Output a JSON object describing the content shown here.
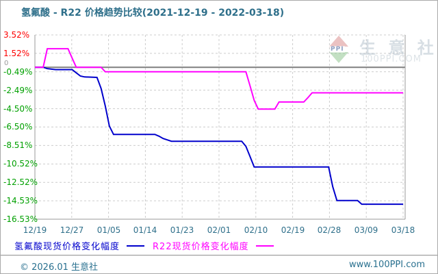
{
  "title": "氢氟酸 - R22 价格趋势比较(2021-12-19 - 2022-03-18)",
  "watermark": {
    "logo_text": "PPI",
    "brand": "生 意 社",
    "site": "100PPI.COM"
  },
  "legend": {
    "items": [
      {
        "label": "氢氟酸现货价格变化幅度",
        "color": "#0000cc"
      },
      {
        "label": "R22现货价格变化幅度",
        "color": "#ff00ff"
      }
    ]
  },
  "footer": {
    "copyright": "© 2026.01 生意社",
    "site": "www.100PPI.com"
  },
  "colors": {
    "title_text": "#2e6f8a",
    "tick_positive": "#fe0000",
    "tick_negative": "#00a000",
    "tick_zero": "#9a9a9a",
    "x_tick_text": "#2e6f8a",
    "grid": "#cccccc",
    "axis": "#999999",
    "zero_line": "#7f7f7f",
    "series_hf": "#0000cc",
    "series_r22": "#ff00ff"
  },
  "chart_data": {
    "type": "line",
    "title": "氢氟酸 - R22 价格趋势比较(2021-12-19 - 2022-03-18)",
    "unit": "%",
    "date_range": [
      "2021-12-19",
      "2022-03-18"
    ],
    "ylim": [
      -16.53,
      3.52
    ],
    "grid": true,
    "legend_position": "bottom",
    "zero_label": "0",
    "x_tick_labels": [
      "12/19",
      "12/27",
      "01/05",
      "01/14",
      "01/23",
      "02/01",
      "02/10",
      "02/19",
      "02/28",
      "03/09",
      "03/18"
    ],
    "y_ticks": [
      {
        "value": 3.52,
        "label": "3.52%"
      },
      {
        "value": 1.52,
        "label": "1.52%"
      },
      {
        "value": -0.49,
        "label": "-0.49%"
      },
      {
        "value": -2.49,
        "label": "-2.49%"
      },
      {
        "value": -4.5,
        "label": "-4.50%"
      },
      {
        "value": -6.5,
        "label": "-6.50%"
      },
      {
        "value": -8.51,
        "label": "-8.51%"
      },
      {
        "value": -10.52,
        "label": "-10.52%"
      },
      {
        "value": -12.52,
        "label": "-12.52%"
      },
      {
        "value": -14.53,
        "label": "-14.53%"
      },
      {
        "value": -16.53,
        "label": "-16.53%"
      }
    ],
    "series": [
      {
        "name": "氢氟酸现货价格变化幅度",
        "color": "#0000cc",
        "points": [
          [
            "12/19",
            0
          ],
          [
            "12/21",
            0
          ],
          [
            "12/22",
            -0.15
          ],
          [
            "12/24",
            -0.25
          ],
          [
            "12/28",
            -0.25
          ],
          [
            "12/29",
            -0.6
          ],
          [
            "12/30",
            -0.95
          ],
          [
            "12/31",
            -1.05
          ],
          [
            "01/03",
            -1.1
          ],
          [
            "01/04",
            -2.3
          ],
          [
            "01/05",
            -4.2
          ],
          [
            "01/06",
            -6.4
          ],
          [
            "01/07",
            -7.3
          ],
          [
            "01/17",
            -7.3
          ],
          [
            "01/18",
            -7.5
          ],
          [
            "01/19",
            -7.75
          ],
          [
            "01/20",
            -7.9
          ],
          [
            "01/21",
            -8.05
          ],
          [
            "02/07",
            -8.05
          ],
          [
            "02/08",
            -8.6
          ],
          [
            "02/09",
            -9.7
          ],
          [
            "02/10",
            -10.85
          ],
          [
            "02/28",
            -10.85
          ],
          [
            "03/01",
            -13.0
          ],
          [
            "03/02",
            -14.5
          ],
          [
            "03/07",
            -14.5
          ],
          [
            "03/08",
            -14.9
          ],
          [
            "03/18",
            -14.9
          ]
        ]
      },
      {
        "name": "R22现货价格变化幅度",
        "color": "#ff00ff",
        "points": [
          [
            "12/19",
            0
          ],
          [
            "12/21",
            0
          ],
          [
            "12/22",
            2.02
          ],
          [
            "12/27",
            2.02
          ],
          [
            "12/28",
            1.0
          ],
          [
            "12/29",
            0
          ],
          [
            "01/04",
            0
          ],
          [
            "01/05",
            -0.49
          ],
          [
            "02/08",
            -0.49
          ],
          [
            "02/09",
            -2.0
          ],
          [
            "02/10",
            -3.6
          ],
          [
            "02/11",
            -4.55
          ],
          [
            "02/15",
            -4.55
          ],
          [
            "02/16",
            -3.78
          ],
          [
            "02/22",
            -3.78
          ],
          [
            "02/23",
            -3.3
          ],
          [
            "02/24",
            -2.78
          ],
          [
            "03/18",
            -2.78
          ]
        ]
      }
    ]
  }
}
